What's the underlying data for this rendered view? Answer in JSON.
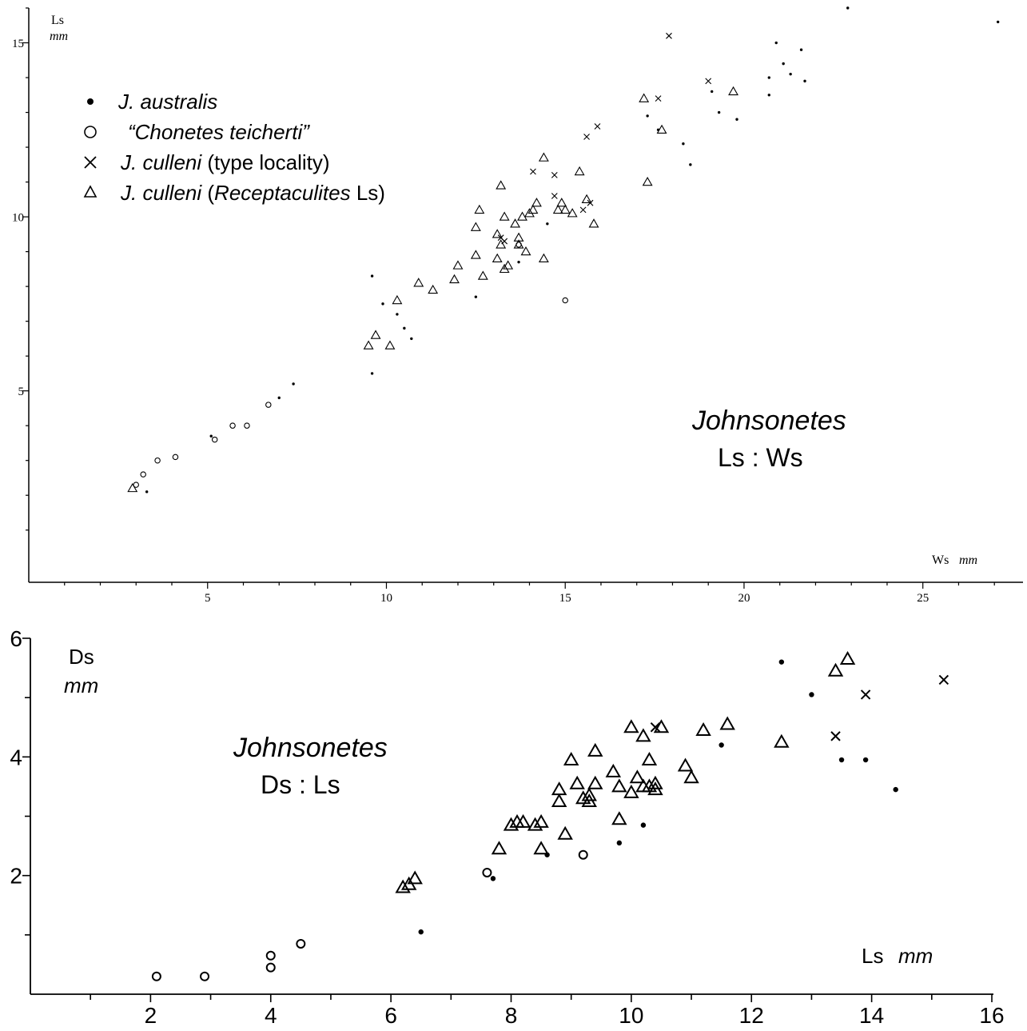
{
  "chart_data": [
    {
      "type": "scatter",
      "title": "Johnsonetes",
      "subtitle": "Ls : Ws",
      "ylabel": "Ls",
      "ylabel_unit": "mm",
      "xlabel": "Ws",
      "xlabel_unit": "mm",
      "xlim": [
        0,
        27.8
      ],
      "ylim": [
        -0.5,
        16
      ],
      "x_ticks": [
        5,
        10,
        15,
        20,
        25
      ],
      "y_ticks": [
        5,
        10,
        15
      ],
      "legend_position": "top-left",
      "legend": [
        {
          "marker": "dot",
          "prefix": "",
          "italic": "J. australis",
          "suffix": ""
        },
        {
          "marker": "circle",
          "prefix": "",
          "italic": "“Chonetes teicherti”",
          "suffix": ""
        },
        {
          "marker": "x",
          "prefix": "",
          "italic": "J. culleni",
          "suffix": " (type locality)"
        },
        {
          "marker": "triangle",
          "prefix": "",
          "italic": "J. culleni",
          "suffix": " (",
          "italic2": "Receptaculites",
          "suffix2": " Ls)"
        }
      ],
      "series": [
        {
          "name": "J. australis",
          "marker": "dot",
          "points": [
            [
              3.3,
              2.1
            ],
            [
              5.1,
              3.7
            ],
            [
              7,
              4.8
            ],
            [
              7.4,
              5.2
            ],
            [
              9.6,
              5.5
            ],
            [
              9.6,
              8.3
            ],
            [
              9.9,
              7.5
            ],
            [
              10.3,
              7.2
            ],
            [
              10.5,
              6.8
            ],
            [
              10.7,
              6.5
            ],
            [
              12.5,
              7.7
            ],
            [
              13.7,
              8.7
            ],
            [
              14.5,
              9.8
            ],
            [
              17.3,
              12.9
            ],
            [
              17.6,
              12.5
            ],
            [
              18.3,
              12.1
            ],
            [
              18.5,
              11.5
            ],
            [
              19.1,
              13.6
            ],
            [
              19.3,
              13
            ],
            [
              19.8,
              12.8
            ],
            [
              20.7,
              14
            ],
            [
              20.7,
              13.5
            ],
            [
              20.9,
              15
            ],
            [
              21.1,
              14.4
            ],
            [
              21.3,
              14.1
            ],
            [
              21.6,
              14.8
            ],
            [
              21.7,
              13.9
            ],
            [
              22.9,
              16
            ],
            [
              27.1,
              15.6
            ]
          ]
        },
        {
          "name": "“Chonetes teicherti”",
          "marker": "circle",
          "points": [
            [
              3,
              2.3
            ],
            [
              3.2,
              2.6
            ],
            [
              3.6,
              3
            ],
            [
              4.1,
              3.1
            ],
            [
              5.2,
              3.6
            ],
            [
              5.7,
              4
            ],
            [
              6.1,
              4
            ],
            [
              6.7,
              4.6
            ],
            [
              13.7,
              9.2
            ],
            [
              15,
              7.6
            ]
          ]
        },
        {
          "name": "J. culleni (type locality)",
          "marker": "x",
          "points": [
            [
              13.2,
              9.4
            ],
            [
              13.3,
              9.3
            ],
            [
              14.1,
              11.3
            ],
            [
              14.7,
              11.2
            ],
            [
              14.7,
              10.6
            ],
            [
              15.5,
              10.2
            ],
            [
              15.6,
              12.3
            ],
            [
              15.7,
              10.4
            ],
            [
              15.9,
              12.6
            ],
            [
              17.6,
              13.4
            ],
            [
              17.9,
              15.2
            ],
            [
              19,
              13.9
            ]
          ]
        },
        {
          "name": "J. culleni (Receptaculites Ls)",
          "marker": "triangle",
          "points": [
            [
              2.9,
              2.2
            ],
            [
              9.5,
              6.3
            ],
            [
              9.7,
              6.6
            ],
            [
              10.1,
              6.3
            ],
            [
              10.3,
              7.6
            ],
            [
              10.9,
              8.1
            ],
            [
              11.3,
              7.9
            ],
            [
              11.9,
              8.2
            ],
            [
              12.0,
              8.6
            ],
            [
              12.5,
              9.7
            ],
            [
              12.5,
              8.9
            ],
            [
              12.6,
              10.2
            ],
            [
              12.7,
              8.3
            ],
            [
              13.1,
              9.5
            ],
            [
              13.1,
              8.8
            ],
            [
              13.2,
              9.2
            ],
            [
              13.2,
              10.9
            ],
            [
              13.3,
              8.5
            ],
            [
              13.3,
              10.0
            ],
            [
              13.4,
              8.6
            ],
            [
              13.6,
              9.8
            ],
            [
              13.7,
              9.4
            ],
            [
              13.7,
              9.2
            ],
            [
              13.8,
              10.0
            ],
            [
              13.9,
              9.0
            ],
            [
              14.0,
              10.1
            ],
            [
              14.1,
              10.2
            ],
            [
              14.2,
              10.4
            ],
            [
              14.4,
              8.8
            ],
            [
              14.4,
              11.7
            ],
            [
              14.8,
              10.2
            ],
            [
              14.9,
              10.4
            ],
            [
              15.0,
              10.2
            ],
            [
              15.2,
              10.1
            ],
            [
              15.4,
              11.3
            ],
            [
              15.6,
              10.5
            ],
            [
              15.8,
              9.8
            ],
            [
              17.2,
              13.4
            ],
            [
              17.3,
              11.0
            ],
            [
              17.7,
              12.5
            ],
            [
              19.7,
              13.6
            ]
          ]
        }
      ]
    },
    {
      "type": "scatter",
      "title": "Johnsonetes",
      "subtitle": "Ds : Ls",
      "ylabel": "Ds",
      "ylabel_unit": "mm",
      "xlabel": "Ls",
      "xlabel_unit": "mm",
      "xlim": [
        0,
        16
      ],
      "ylim": [
        0,
        6
      ],
      "x_ticks": [
        2,
        4,
        6,
        8,
        10,
        12,
        14,
        16
      ],
      "y_ticks": [
        2,
        4,
        6
      ],
      "series": [
        {
          "name": "J. australis",
          "marker": "dot",
          "points": [
            [
              6.5,
              1.05
            ],
            [
              7.7,
              1.95
            ],
            [
              8.6,
              2.35
            ],
            [
              9.8,
              2.55
            ],
            [
              10.2,
              2.85
            ],
            [
              11.5,
              4.2
            ],
            [
              12.5,
              5.6
            ],
            [
              13,
              5.05
            ],
            [
              13.5,
              3.95
            ],
            [
              13.9,
              3.95
            ],
            [
              14.4,
              3.45
            ]
          ]
        },
        {
          "name": "“Chonetes teicherti”",
          "marker": "circle",
          "points": [
            [
              2.1,
              0.3
            ],
            [
              2.9,
              0.3
            ],
            [
              4.0,
              0.45
            ],
            [
              4.0,
              0.65
            ],
            [
              4.5,
              0.85
            ],
            [
              7.6,
              2.05
            ],
            [
              9.2,
              2.35
            ]
          ]
        },
        {
          "name": "J. culleni (type locality)",
          "marker": "x",
          "points": [
            [
              10.4,
              4.5
            ],
            [
              13.4,
              4.35
            ],
            [
              13.9,
              5.05
            ],
            [
              15.2,
              5.3
            ]
          ]
        },
        {
          "name": "J. culleni (Receptaculites Ls)",
          "marker": "triangle",
          "points": [
            [
              6.2,
              1.8
            ],
            [
              6.3,
              1.85
            ],
            [
              6.4,
              1.95
            ],
            [
              7.8,
              2.45
            ],
            [
              8.0,
              2.85
            ],
            [
              8.1,
              2.9
            ],
            [
              8.2,
              2.9
            ],
            [
              8.4,
              2.85
            ],
            [
              8.5,
              2.9
            ],
            [
              8.5,
              2.45
            ],
            [
              8.8,
              3.45
            ],
            [
              8.8,
              3.25
            ],
            [
              8.9,
              2.7
            ],
            [
              9.0,
              3.95
            ],
            [
              9.1,
              3.55
            ],
            [
              9.2,
              3.3
            ],
            [
              9.3,
              3.35
            ],
            [
              9.3,
              3.25
            ],
            [
              9.4,
              3.55
            ],
            [
              9.4,
              4.1
            ],
            [
              9.7,
              3.75
            ],
            [
              9.8,
              3.5
            ],
            [
              9.8,
              2.95
            ],
            [
              10.0,
              3.4
            ],
            [
              10.0,
              4.5
            ],
            [
              10.1,
              3.65
            ],
            [
              10.2,
              3.5
            ],
            [
              10.2,
              4.35
            ],
            [
              10.3,
              3.5
            ],
            [
              10.3,
              3.95
            ],
            [
              10.4,
              3.45
            ],
            [
              10.4,
              3.55
            ],
            [
              10.5,
              4.5
            ],
            [
              10.9,
              3.85
            ],
            [
              11.0,
              3.65
            ],
            [
              11.2,
              4.45
            ],
            [
              11.6,
              4.55
            ],
            [
              12.5,
              4.25
            ],
            [
              13.4,
              5.45
            ],
            [
              13.6,
              5.65
            ]
          ]
        }
      ]
    }
  ]
}
